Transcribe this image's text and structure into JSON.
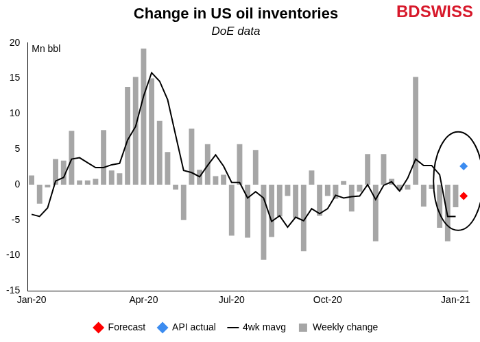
{
  "chart_data": {
    "type": "bar",
    "title": "Change in US oil inventories",
    "subtitle": "DoE data",
    "ylabel": "Mn bbl",
    "logo": "BDSWISS",
    "categories": [
      "Jan-20",
      null,
      null,
      null,
      null,
      null,
      null,
      null,
      null,
      null,
      null,
      null,
      null,
      null,
      "Apr-20",
      null,
      null,
      null,
      null,
      null,
      null,
      null,
      null,
      null,
      null,
      "Jul-20",
      null,
      null,
      null,
      null,
      null,
      null,
      null,
      null,
      null,
      null,
      null,
      "Oct-20",
      null,
      null,
      null,
      null,
      null,
      null,
      null,
      null,
      null,
      null,
      null,
      null,
      null,
      null,
      null,
      "Jan-21",
      null
    ],
    "series": [
      {
        "name": "Weekly change",
        "type": "bar",
        "color": "#a6a6a6",
        "values": [
          1.3,
          -2.7,
          -0.4,
          3.6,
          3.4,
          7.6,
          0.6,
          0.6,
          0.8,
          7.7,
          2.0,
          1.6,
          13.8,
          15.2,
          19.2,
          15.0,
          9.0,
          4.6,
          -0.7,
          -5.0,
          7.9,
          2.1,
          5.7,
          1.2,
          1.4,
          -7.2,
          5.7,
          -7.5,
          4.9,
          -10.6,
          -7.4,
          -4.5,
          -1.6,
          -4.7,
          -9.4,
          2.0,
          -4.4,
          -1.6,
          -2.0,
          0.5,
          -3.8,
          -1.0,
          4.3,
          -8.0,
          4.3,
          0.8,
          -0.8,
          -0.7,
          15.2,
          -3.1,
          -0.6,
          -6.1,
          -8.0,
          -3.2,
          null
        ]
      },
      {
        "name": "4wk mavg",
        "type": "line",
        "color": "#000000",
        "line_style": "solid",
        "values": [
          -4.2,
          -4.5,
          -3.3,
          0.5,
          1.0,
          3.6,
          3.8,
          3.1,
          2.4,
          2.4,
          2.8,
          3.0,
          6.3,
          8.2,
          12.5,
          15.8,
          14.6,
          12.0,
          7.0,
          2.0,
          1.7,
          1.1,
          2.7,
          4.2,
          2.6,
          0.3,
          0.3,
          -1.9,
          -1.0,
          -1.9,
          -5.2,
          -4.4,
          -6.0,
          -4.6,
          -5.1,
          -3.4,
          -4.1,
          -3.4,
          -1.5,
          -1.9,
          -1.7,
          -1.6,
          0.0,
          -2.1,
          -0.1,
          0.4,
          -0.9,
          0.9,
          3.6,
          2.7,
          2.7,
          1.4,
          -4.5,
          -4.5,
          null
        ]
      },
      {
        "name": "Forecast",
        "type": "scatter",
        "color": "#ff0000",
        "marker": "diamond",
        "values": [
          null,
          null,
          null,
          null,
          null,
          null,
          null,
          null,
          null,
          null,
          null,
          null,
          null,
          null,
          null,
          null,
          null,
          null,
          null,
          null,
          null,
          null,
          null,
          null,
          null,
          null,
          null,
          null,
          null,
          null,
          null,
          null,
          null,
          null,
          null,
          null,
          null,
          null,
          null,
          null,
          null,
          null,
          null,
          null,
          null,
          null,
          null,
          null,
          null,
          null,
          null,
          null,
          null,
          null,
          -1.6
        ]
      },
      {
        "name": "API actual",
        "type": "scatter",
        "color": "#3c8cf0",
        "marker": "diamond",
        "values": [
          null,
          null,
          null,
          null,
          null,
          null,
          null,
          null,
          null,
          null,
          null,
          null,
          null,
          null,
          null,
          null,
          null,
          null,
          null,
          null,
          null,
          null,
          null,
          null,
          null,
          null,
          null,
          null,
          null,
          null,
          null,
          null,
          null,
          null,
          null,
          null,
          null,
          null,
          null,
          null,
          null,
          null,
          null,
          null,
          null,
          null,
          null,
          null,
          null,
          null,
          null,
          null,
          null,
          null,
          2.6
        ]
      }
    ],
    "ylim": [
      -15,
      20
    ],
    "yticks": [
      -15,
      -10,
      -5,
      0,
      5,
      10,
      15,
      20
    ],
    "grid": false,
    "legend": "bottom"
  }
}
